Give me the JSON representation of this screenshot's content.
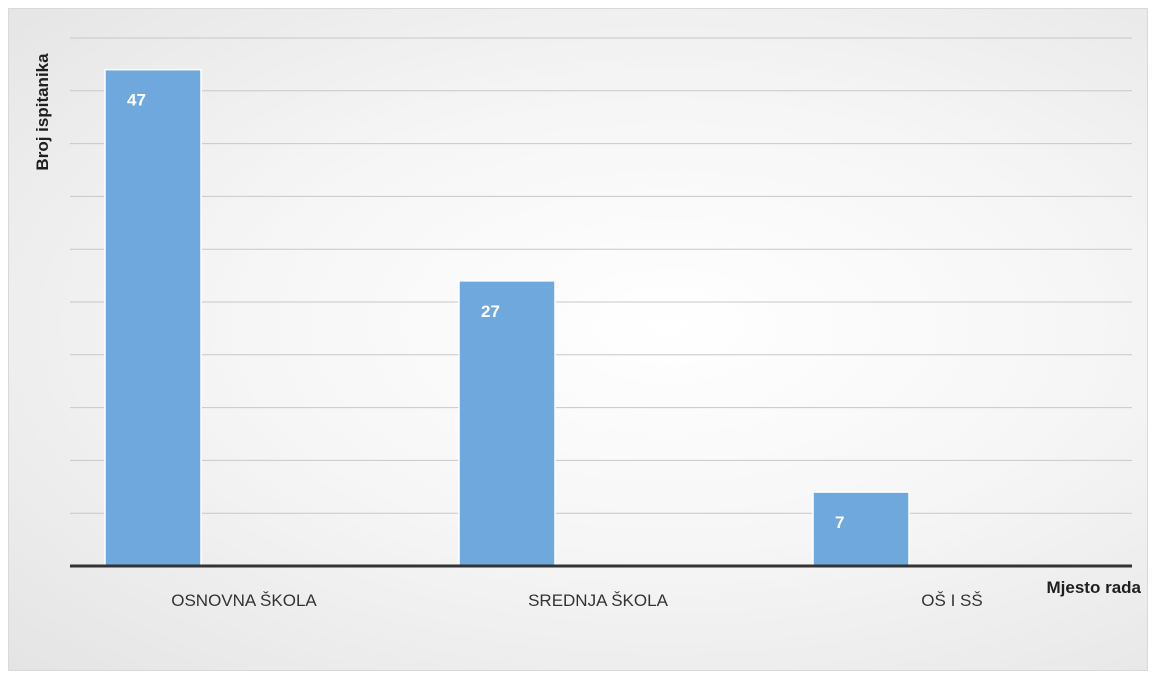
{
  "chart_data": {
    "type": "bar",
    "categories": [
      "OSNOVNA ŠKOLA",
      "SREDNJA ŠKOLA",
      "OŠ I SŠ"
    ],
    "values": [
      47,
      27,
      7
    ],
    "xlabel": "Mjesto rada",
    "ylabel": "Broj ispitanika",
    "ylim": [
      0,
      50
    ],
    "grid": true,
    "bar_color": "#6fa8dc",
    "data_labels": true
  }
}
